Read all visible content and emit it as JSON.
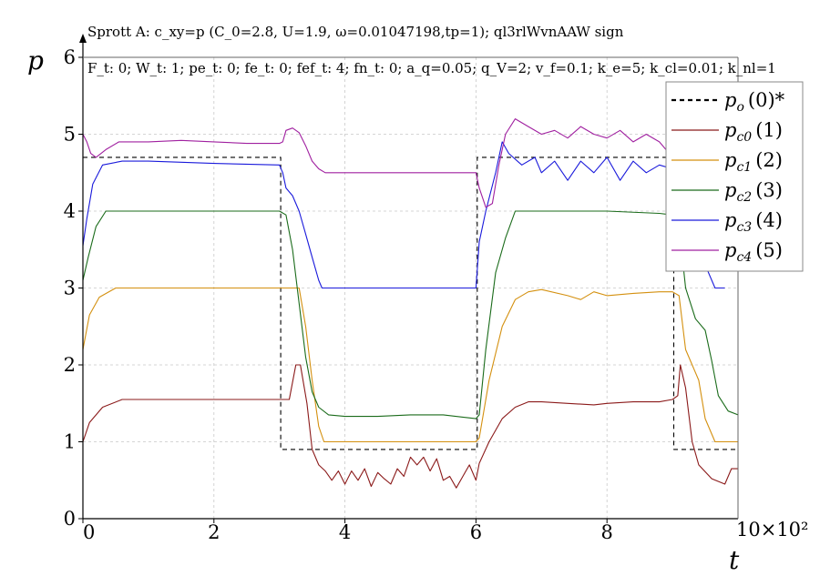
{
  "chart_data": {
    "type": "line",
    "title": "Sprott A: c_xy=p (C_0=2.8, U=1.9, ω=0.01047198,tp=1); ql3rlWvnAAW sign",
    "params_line": "F_t: 0; W_t: 1; pe_t: 0; fe_t: 0; fef_t: 4; fn_t: 0; a_q=0.05; q_V=2; v_f=0.1; k_e=5; k_cl=0.01; k_nl=1",
    "xlabel": "t",
    "ylabel": "p",
    "x_multiplier_label": "10×10²",
    "xlim": [
      0,
      10
    ],
    "ylim": [
      0,
      6
    ],
    "x_ticks": [
      0,
      2,
      4,
      6,
      8
    ],
    "y_ticks": [
      0,
      1,
      2,
      3,
      4,
      5,
      6
    ],
    "grid": true,
    "legend_position": "top-right",
    "series": [
      {
        "name": "p_o (0)*",
        "sym": "p",
        "sub": "o",
        "idx": "(0)*",
        "color": "#000000",
        "dash": true,
        "points": [
          [
            0,
            4.7
          ],
          [
            3.02,
            4.7
          ],
          [
            3.02,
            0.9
          ],
          [
            6.02,
            0.9
          ],
          [
            6.02,
            4.7
          ],
          [
            9.02,
            4.7
          ],
          [
            9.02,
            0.9
          ],
          [
            10,
            0.9
          ]
        ]
      },
      {
        "name": "p_c0 (1)",
        "sym": "p",
        "sub": "c0",
        "idx": "(1)",
        "color": "#8b1a1a",
        "dash": false,
        "points": [
          [
            0,
            1.0
          ],
          [
            0.1,
            1.25
          ],
          [
            0.3,
            1.45
          ],
          [
            0.6,
            1.55
          ],
          [
            1.0,
            1.55
          ],
          [
            2.0,
            1.55
          ],
          [
            3.0,
            1.55
          ],
          [
            3.15,
            1.55
          ],
          [
            3.25,
            2.0
          ],
          [
            3.32,
            2.0
          ],
          [
            3.42,
            1.5
          ],
          [
            3.5,
            0.9
          ],
          [
            3.6,
            0.7
          ],
          [
            3.7,
            0.62
          ],
          [
            3.8,
            0.5
          ],
          [
            3.9,
            0.62
          ],
          [
            4.0,
            0.45
          ],
          [
            4.1,
            0.62
          ],
          [
            4.2,
            0.5
          ],
          [
            4.3,
            0.65
          ],
          [
            4.4,
            0.42
          ],
          [
            4.5,
            0.6
          ],
          [
            4.6,
            0.52
          ],
          [
            4.7,
            0.45
          ],
          [
            4.8,
            0.65
          ],
          [
            4.9,
            0.55
          ],
          [
            5.0,
            0.8
          ],
          [
            5.1,
            0.7
          ],
          [
            5.2,
            0.8
          ],
          [
            5.3,
            0.62
          ],
          [
            5.4,
            0.78
          ],
          [
            5.5,
            0.5
          ],
          [
            5.6,
            0.55
          ],
          [
            5.7,
            0.4
          ],
          [
            5.8,
            0.55
          ],
          [
            5.9,
            0.7
          ],
          [
            6.0,
            0.5
          ],
          [
            6.05,
            0.72
          ],
          [
            6.2,
            1.0
          ],
          [
            6.4,
            1.3
          ],
          [
            6.6,
            1.45
          ],
          [
            6.8,
            1.52
          ],
          [
            7.0,
            1.52
          ],
          [
            7.4,
            1.5
          ],
          [
            7.8,
            1.48
          ],
          [
            8.0,
            1.5
          ],
          [
            8.4,
            1.52
          ],
          [
            8.8,
            1.52
          ],
          [
            9.0,
            1.55
          ],
          [
            9.08,
            1.6
          ],
          [
            9.12,
            2.0
          ],
          [
            9.2,
            1.7
          ],
          [
            9.3,
            1.0
          ],
          [
            9.4,
            0.7
          ],
          [
            9.6,
            0.52
          ],
          [
            9.8,
            0.45
          ],
          [
            9.9,
            0.65
          ],
          [
            10,
            0.65
          ]
        ]
      },
      {
        "name": "p_c1 (2)",
        "sym": "p",
        "sub": "c1",
        "idx": "(2)",
        "color": "#d4900f",
        "dash": false,
        "points": [
          [
            0,
            2.2
          ],
          [
            0.1,
            2.65
          ],
          [
            0.25,
            2.88
          ],
          [
            0.5,
            3.0
          ],
          [
            1.0,
            3.0
          ],
          [
            2.0,
            3.0
          ],
          [
            3.0,
            3.0
          ],
          [
            3.3,
            3.0
          ],
          [
            3.4,
            2.5
          ],
          [
            3.5,
            1.8
          ],
          [
            3.6,
            1.2
          ],
          [
            3.68,
            1.0
          ],
          [
            4.5,
            1.0
          ],
          [
            5.5,
            1.0
          ],
          [
            6.0,
            1.0
          ],
          [
            6.05,
            1.05
          ],
          [
            6.2,
            1.8
          ],
          [
            6.4,
            2.5
          ],
          [
            6.6,
            2.85
          ],
          [
            6.8,
            2.95
          ],
          [
            7.0,
            2.98
          ],
          [
            7.4,
            2.9
          ],
          [
            7.6,
            2.85
          ],
          [
            7.8,
            2.95
          ],
          [
            8.0,
            2.9
          ],
          [
            8.4,
            2.93
          ],
          [
            8.8,
            2.95
          ],
          [
            9.0,
            2.95
          ],
          [
            9.1,
            2.9
          ],
          [
            9.2,
            2.2
          ],
          [
            9.3,
            2.0
          ],
          [
            9.4,
            1.8
          ],
          [
            9.5,
            1.3
          ],
          [
            9.65,
            1.0
          ],
          [
            10,
            1.0
          ]
        ]
      },
      {
        "name": "p_c2 (3)",
        "sym": "p",
        "sub": "c2",
        "idx": "(3)",
        "color": "#1a6b1a",
        "dash": false,
        "points": [
          [
            0,
            3.1
          ],
          [
            0.08,
            3.4
          ],
          [
            0.2,
            3.8
          ],
          [
            0.35,
            4.0
          ],
          [
            1.0,
            4.0
          ],
          [
            2.0,
            4.0
          ],
          [
            3.0,
            4.0
          ],
          [
            3.1,
            3.95
          ],
          [
            3.2,
            3.5
          ],
          [
            3.3,
            2.8
          ],
          [
            3.4,
            2.1
          ],
          [
            3.5,
            1.65
          ],
          [
            3.6,
            1.45
          ],
          [
            3.75,
            1.35
          ],
          [
            4.0,
            1.33
          ],
          [
            4.5,
            1.33
          ],
          [
            5.0,
            1.35
          ],
          [
            5.5,
            1.35
          ],
          [
            6.0,
            1.3
          ],
          [
            6.05,
            1.35
          ],
          [
            6.15,
            2.2
          ],
          [
            6.3,
            3.2
          ],
          [
            6.45,
            3.65
          ],
          [
            6.6,
            4.0
          ],
          [
            7.0,
            4.0
          ],
          [
            8.0,
            4.0
          ],
          [
            8.8,
            3.97
          ],
          [
            9.0,
            3.95
          ],
          [
            9.1,
            3.8
          ],
          [
            9.2,
            3.0
          ],
          [
            9.35,
            2.6
          ],
          [
            9.5,
            2.45
          ],
          [
            9.6,
            2.05
          ],
          [
            9.7,
            1.6
          ],
          [
            9.85,
            1.4
          ],
          [
            10,
            1.35
          ]
        ]
      },
      {
        "name": "p_c3 (4)",
        "sym": "p",
        "sub": "c3",
        "idx": "(4)",
        "color": "#1a1adb",
        "dash": false,
        "points": [
          [
            0,
            3.55
          ],
          [
            0.06,
            3.9
          ],
          [
            0.15,
            4.35
          ],
          [
            0.3,
            4.6
          ],
          [
            0.6,
            4.65
          ],
          [
            1.0,
            4.65
          ],
          [
            2.0,
            4.62
          ],
          [
            3.0,
            4.6
          ],
          [
            3.05,
            4.5
          ],
          [
            3.1,
            4.3
          ],
          [
            3.2,
            4.2
          ],
          [
            3.3,
            4.0
          ],
          [
            3.4,
            3.7
          ],
          [
            3.5,
            3.4
          ],
          [
            3.6,
            3.1
          ],
          [
            3.65,
            3.0
          ],
          [
            4.0,
            3.0
          ],
          [
            5.0,
            3.0
          ],
          [
            6.0,
            3.0
          ],
          [
            6.05,
            3.6
          ],
          [
            6.15,
            4.0
          ],
          [
            6.3,
            4.5
          ],
          [
            6.4,
            4.9
          ],
          [
            6.5,
            4.75
          ],
          [
            6.7,
            4.6
          ],
          [
            6.9,
            4.7
          ],
          [
            7.0,
            4.5
          ],
          [
            7.2,
            4.65
          ],
          [
            7.4,
            4.4
          ],
          [
            7.6,
            4.65
          ],
          [
            7.8,
            4.5
          ],
          [
            8.0,
            4.7
          ],
          [
            8.2,
            4.4
          ],
          [
            8.4,
            4.65
          ],
          [
            8.6,
            4.5
          ],
          [
            8.8,
            4.6
          ],
          [
            9.0,
            4.55
          ],
          [
            9.1,
            4.0
          ],
          [
            9.3,
            3.7
          ],
          [
            9.5,
            3.3
          ],
          [
            9.65,
            3.0
          ],
          [
            9.8,
            3.0
          ]
        ]
      },
      {
        "name": "p_c4 (5)",
        "sym": "p",
        "sub": "c4",
        "idx": "(5)",
        "color": "#a020a0",
        "dash": false,
        "points": [
          [
            0,
            5.0
          ],
          [
            0.06,
            4.9
          ],
          [
            0.12,
            4.75
          ],
          [
            0.2,
            4.7
          ],
          [
            0.35,
            4.8
          ],
          [
            0.55,
            4.9
          ],
          [
            1.0,
            4.9
          ],
          [
            1.5,
            4.92
          ],
          [
            2.0,
            4.9
          ],
          [
            2.5,
            4.88
          ],
          [
            3.0,
            4.88
          ],
          [
            3.05,
            4.9
          ],
          [
            3.1,
            5.05
          ],
          [
            3.2,
            5.08
          ],
          [
            3.3,
            5.02
          ],
          [
            3.4,
            4.85
          ],
          [
            3.5,
            4.65
          ],
          [
            3.6,
            4.55
          ],
          [
            3.7,
            4.5
          ],
          [
            4.0,
            4.5
          ],
          [
            5.0,
            4.5
          ],
          [
            6.0,
            4.5
          ],
          [
            6.05,
            4.3
          ],
          [
            6.15,
            4.05
          ],
          [
            6.25,
            4.1
          ],
          [
            6.35,
            4.6
          ],
          [
            6.45,
            5.0
          ],
          [
            6.6,
            5.2
          ],
          [
            6.8,
            5.1
          ],
          [
            7.0,
            5.0
          ],
          [
            7.2,
            5.05
          ],
          [
            7.4,
            4.95
          ],
          [
            7.6,
            5.1
          ],
          [
            7.8,
            5.0
          ],
          [
            8.0,
            4.95
          ],
          [
            8.2,
            5.05
          ],
          [
            8.4,
            4.9
          ],
          [
            8.6,
            5.0
          ],
          [
            8.8,
            4.9
          ],
          [
            9.0,
            4.7
          ],
          [
            9.1,
            4.5
          ],
          [
            9.2,
            4.1
          ],
          [
            9.3,
            3.8
          ],
          [
            9.4,
            3.6
          ]
        ]
      }
    ]
  }
}
